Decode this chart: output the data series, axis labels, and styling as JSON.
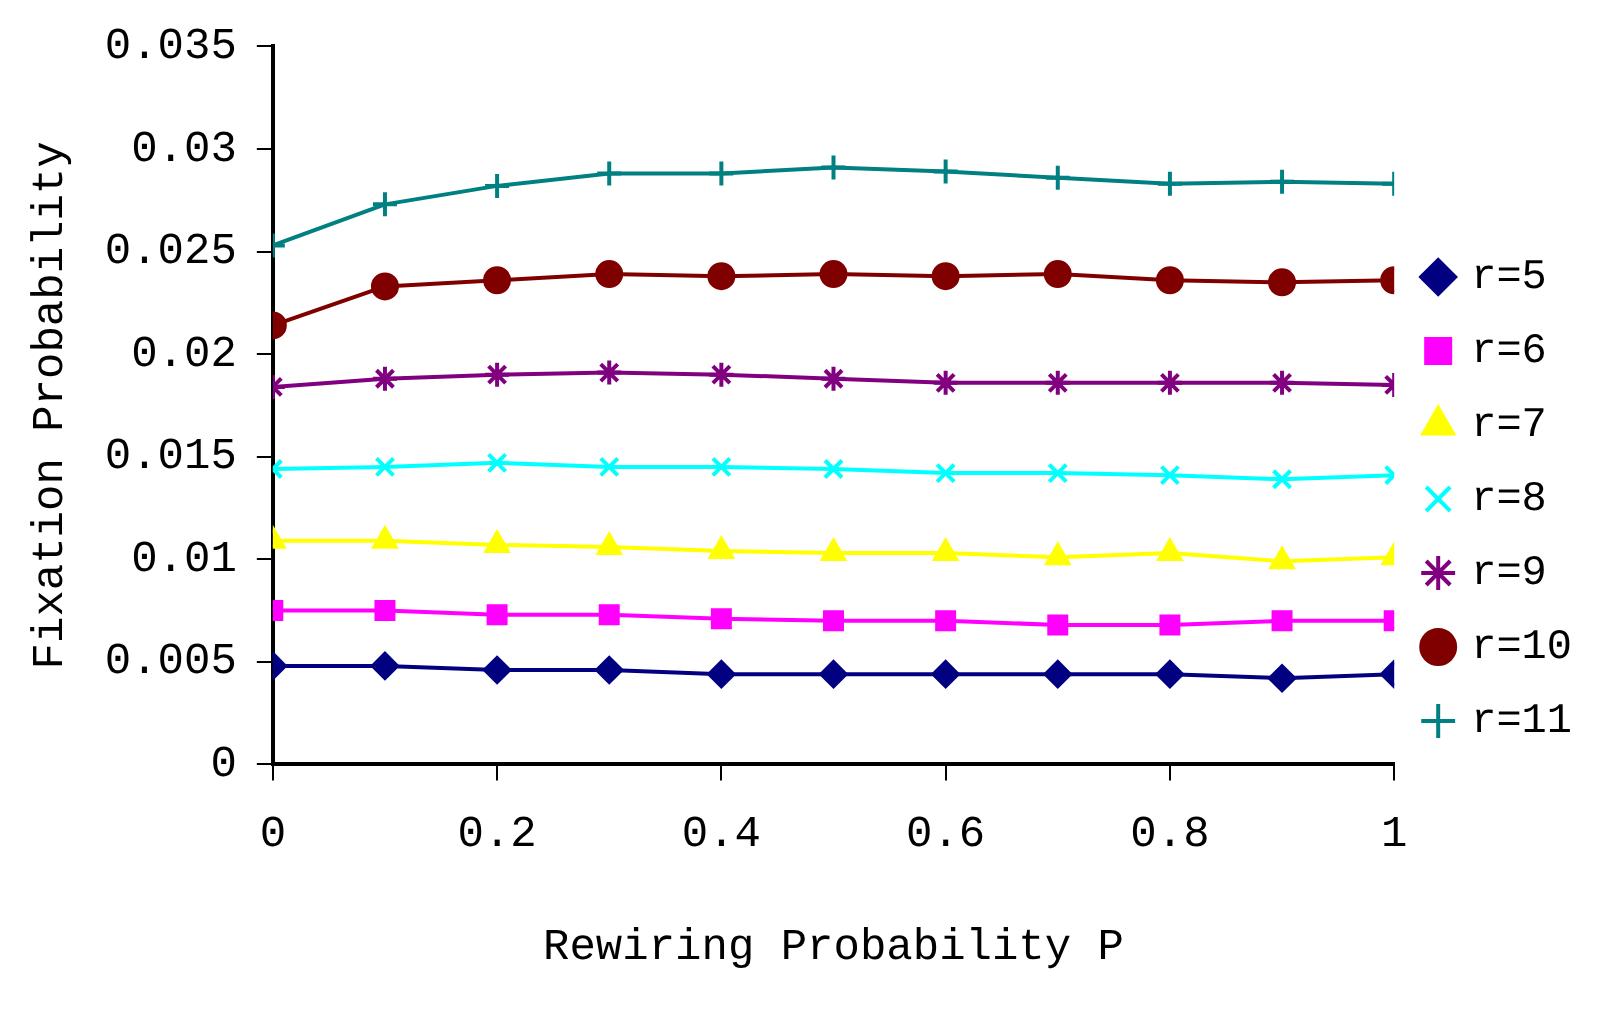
{
  "chart_data": {
    "type": "line",
    "xlabel": "Rewiring Probability P",
    "ylabel": "Fixation Probability",
    "x": [
      0,
      0.1,
      0.2,
      0.3,
      0.4,
      0.5,
      0.6,
      0.7,
      0.8,
      0.9,
      1
    ],
    "xlim": [
      0,
      1
    ],
    "xticks": [
      0,
      0.2,
      0.4,
      0.6,
      0.8,
      1
    ],
    "ylim": [
      0,
      0.035
    ],
    "yticks": [
      0,
      0.005,
      0.01,
      0.015,
      0.02,
      0.025,
      0.03,
      0.035
    ],
    "grid": false,
    "legend": "right",
    "series": [
      {
        "name": "r=5",
        "color": "#000080",
        "marker": "diamond",
        "values": [
          0.0048,
          0.0048,
          0.0046,
          0.0046,
          0.0044,
          0.0044,
          0.0044,
          0.0044,
          0.0044,
          0.0042,
          0.0044
        ]
      },
      {
        "name": "r=6",
        "color": "#ff00ff",
        "marker": "square",
        "values": [
          0.0075,
          0.0075,
          0.0073,
          0.0073,
          0.0071,
          0.007,
          0.007,
          0.0068,
          0.0068,
          0.007,
          0.007
        ]
      },
      {
        "name": "r=7",
        "color": "#ffff00",
        "marker": "triangle",
        "values": [
          0.0109,
          0.0109,
          0.0107,
          0.0106,
          0.0104,
          0.0103,
          0.0103,
          0.0101,
          0.0103,
          0.0099,
          0.0101
        ]
      },
      {
        "name": "r=8",
        "color": "#00ffff",
        "marker": "x",
        "values": [
          0.0144,
          0.0145,
          0.0147,
          0.0145,
          0.0145,
          0.0144,
          0.0142,
          0.0142,
          0.0141,
          0.0139,
          0.0141
        ]
      },
      {
        "name": "r=9",
        "color": "#800080",
        "marker": "cross",
        "values": [
          0.0184,
          0.0188,
          0.019,
          0.0191,
          0.019,
          0.0188,
          0.0186,
          0.0186,
          0.0186,
          0.0186,
          0.0185
        ]
      },
      {
        "name": "r=10",
        "color": "#800000",
        "marker": "circle",
        "values": [
          0.0214,
          0.0233,
          0.0236,
          0.0239,
          0.0238,
          0.0239,
          0.0238,
          0.0239,
          0.0236,
          0.0235,
          0.0236
        ]
      },
      {
        "name": "r=11",
        "color": "#008080",
        "marker": "plus",
        "values": [
          0.0253,
          0.0273,
          0.0282,
          0.0288,
          0.0288,
          0.0291,
          0.0289,
          0.0286,
          0.0283,
          0.0284,
          0.0283
        ]
      }
    ]
  }
}
